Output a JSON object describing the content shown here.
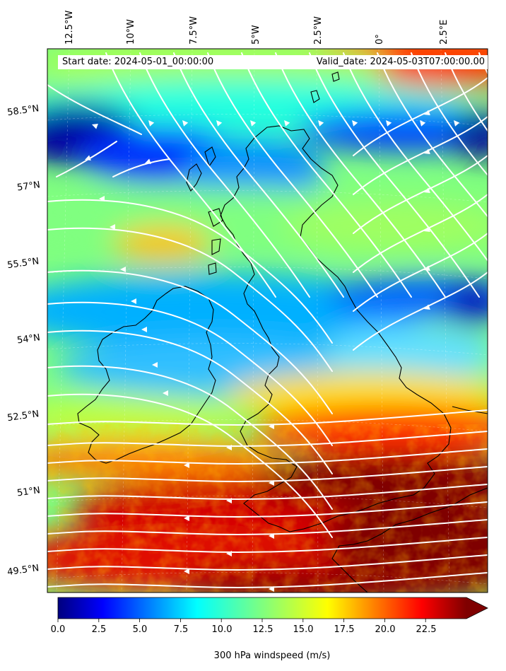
{
  "header": {
    "start_date": "Start date: 2024-05-01_00:00:00",
    "valid_date": "Valid_date: 2024-05-03T07:00:00.00"
  },
  "axes": {
    "longitude_labels": [
      "12.5°W",
      "10°W",
      "7.5°W",
      "5°W",
      "2.5°W",
      "0°",
      "2.5°E"
    ],
    "latitude_labels": [
      "58.5°N",
      "57°N",
      "55.5°N",
      "54°N",
      "52.5°N",
      "51°N",
      "49.5°N"
    ]
  },
  "field": {
    "variable": "300 hPa windspeed",
    "units": "m/s",
    "colormap": "jet",
    "range": [
      0,
      25
    ],
    "extend": "max"
  },
  "colorbar": {
    "label": "300 hPa windspeed (m/s)",
    "ticks": [
      "0.0",
      "2.5",
      "5.0",
      "7.5",
      "10.0",
      "12.5",
      "15.0",
      "17.5",
      "20.0",
      "22.5"
    ],
    "extend_color": "#7f0000"
  },
  "streamline_color": "#ffffff",
  "coastline_color": "#000000"
}
